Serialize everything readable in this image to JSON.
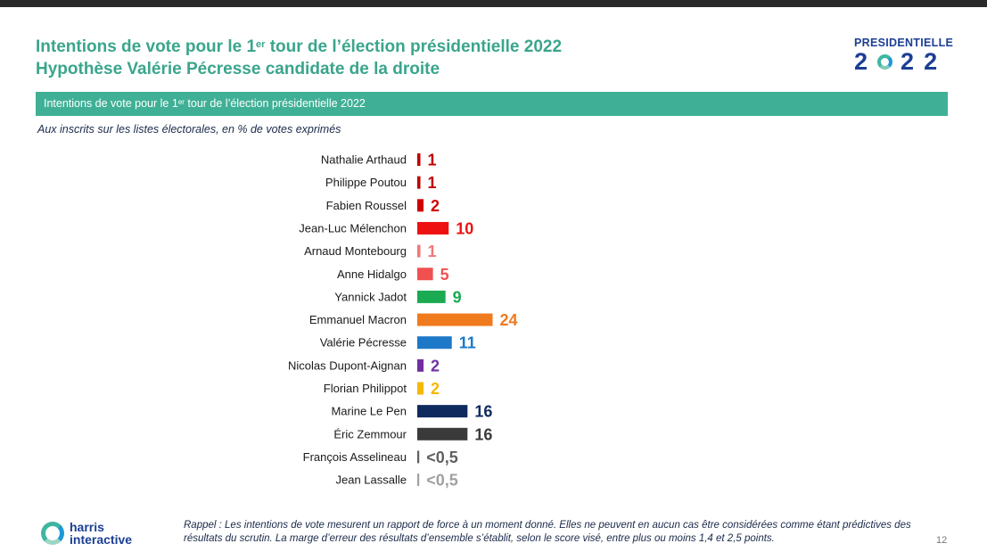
{
  "header": {
    "title_line1_pre": "Intentions de vote pour le 1",
    "title_line1_sup": "er",
    "title_line1_post": " tour de l’élection présidentielle 2022",
    "title_line2": "Hypothèse Valérie Pécresse candidate de la droite"
  },
  "logo": {
    "line1": "PRESIDENTIELLE",
    "digit1": "2",
    "digit3": "2",
    "digit4": "2"
  },
  "banner": {
    "pre": "Intentions de vote pour le 1",
    "sup": "er",
    "post": " tour de l’élection présidentielle 2022"
  },
  "subtitle": "Aux inscrits sur les listes électorales, en % de votes exprimés",
  "footer": {
    "brand_line1": "harris",
    "brand_line2": "interactive",
    "rappel": "Rappel : Les intentions de vote mesurent un rapport de force à un moment donné. Elles ne peuvent en aucun cas être considérées comme étant prédictives des résultats du scrutin. La marge d’erreur des résultats d’ensemble s’établit, selon le score visé, entre plus ou moins 1,4 et 2,5 points.",
    "page_number": "12"
  },
  "chart_data": {
    "type": "bar",
    "orientation": "horizontal",
    "title": "Intentions de vote pour le 1er tour de l’élection présidentielle 2022",
    "unit": "%",
    "xlim": [
      0,
      24
    ],
    "categories": [
      "Nathalie Arthaud",
      "Philippe Poutou",
      "Fabien Roussel",
      "Jean-Luc Mélenchon",
      "Arnaud Montebourg",
      "Anne Hidalgo",
      "Yannick Jadot",
      "Emmanuel Macron",
      "Valérie Pécresse",
      "Nicolas Dupont-Aignan",
      "Florian Philippot",
      "Marine Le Pen",
      "Éric Zemmour",
      "François Asselineau",
      "Jean Lassalle"
    ],
    "values": [
      1,
      1,
      2,
      10,
      1,
      5,
      9,
      24,
      11,
      2,
      2,
      16,
      16,
      0.5,
      0.5
    ],
    "labels": [
      "1",
      "1",
      "2",
      "10",
      "1",
      "5",
      "9",
      "24",
      "11",
      "2",
      "2",
      "16",
      "16",
      "<0,5",
      "<0,5"
    ],
    "colors": [
      "#c00000",
      "#c00000",
      "#d00000",
      "#ee1111",
      "#f07878",
      "#f05050",
      "#1aaa52",
      "#f07a1e",
      "#1e78c8",
      "#7030a0",
      "#f5b800",
      "#0e2a5e",
      "#3a3a3a",
      "#606060",
      "#a0a0a0"
    ]
  }
}
